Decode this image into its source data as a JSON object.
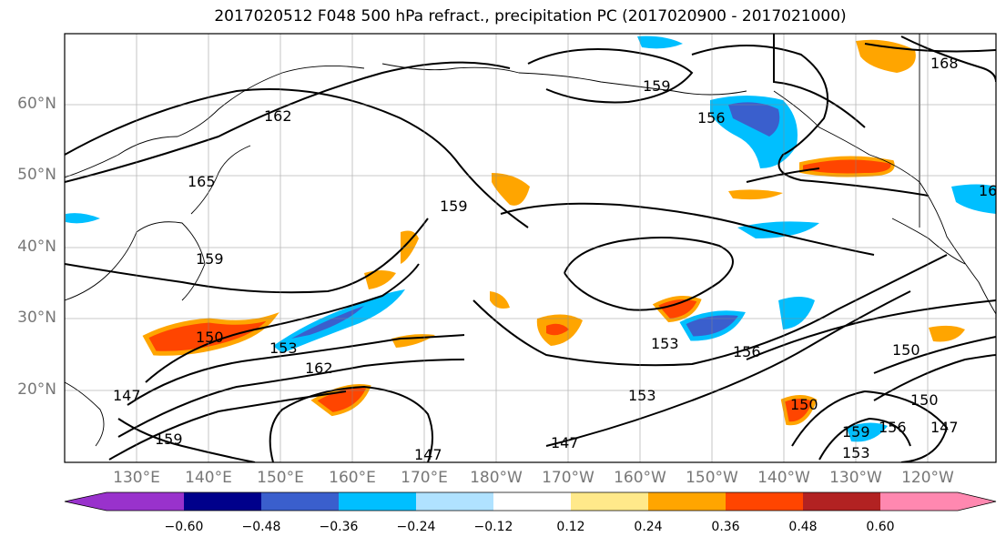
{
  "title": "2017020512 F048 500 hPa refract., precipitation PC (2017020900 - 2017021000)",
  "lat_labels": [
    "60°N",
    "50°N",
    "40°N",
    "30°N",
    "20°N"
  ],
  "lon_labels": [
    "130°E",
    "140°E",
    "150°E",
    "160°E",
    "170°E",
    "180°W",
    "170°W",
    "160°W",
    "150°W",
    "140°W",
    "130°W",
    "120°W"
  ],
  "contour_labels": [
    "162",
    "165",
    "159",
    "159",
    "159",
    "156",
    "150",
    "153",
    "162",
    "147",
    "159",
    "147",
    "153",
    "153",
    "156",
    "150",
    "150",
    "159",
    "153",
    "156",
    "150",
    "147",
    "168",
    "16"
  ],
  "colorbar": {
    "ticks": [
      "−0.60",
      "−0.48",
      "−0.36",
      "−0.24",
      "−0.12",
      "0.12",
      "0.24",
      "0.36",
      "0.48",
      "0.60"
    ],
    "colors": [
      "#9932cc",
      "#00008b",
      "#3a5fcd",
      "#00bfff",
      "#b0e2ff",
      "#ffffff",
      "#ffe98a",
      "#ffa500",
      "#ff4500",
      "#b22222",
      "#ff88b0"
    ]
  }
}
